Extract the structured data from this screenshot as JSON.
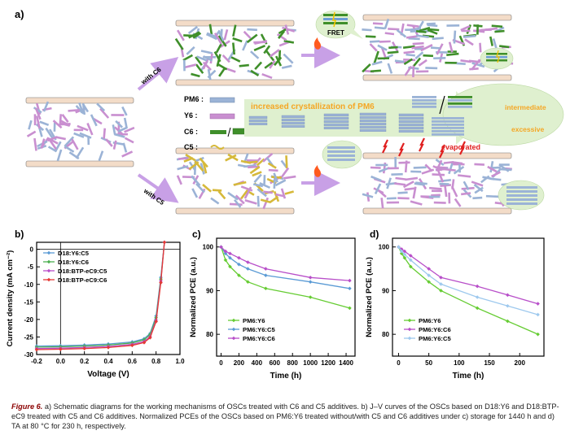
{
  "panel_a": {
    "label": "a)",
    "arrow_upper_label": "with C6",
    "arrow_lower_label": "with C5",
    "legend": [
      "PM6 :",
      "Y6 :",
      "C6 :",
      "C5 :"
    ],
    "fret_label": "FRET",
    "crystallization_text": "increased crystallization of PM6",
    "intermediate_label": "intermediate",
    "excessive_label": "excessive",
    "evaporated_label": "evaporated"
  },
  "chart_data": [
    {
      "panel": "b)",
      "type": "line",
      "xlabel": "Voltage (V)",
      "ylabel": "Current density (mA cm⁻²)",
      "xlim": [
        -0.2,
        1.0
      ],
      "ylim": [
        -30,
        2
      ],
      "xticks": [
        "-0.2",
        "0.0",
        "0.2",
        "0.4",
        "0.6",
        "0.8",
        "1.0"
      ],
      "yticks": [
        "0",
        "-5",
        "-10",
        "-15",
        "-20",
        "-25",
        "-30"
      ],
      "legend_position": "top-left",
      "series": [
        {
          "name": "D18:Y6:C5",
          "color": "#5b9bd5",
          "x": [
            -0.2,
            0.0,
            0.2,
            0.4,
            0.6,
            0.7,
            0.75,
            0.8,
            0.84,
            0.87
          ],
          "y": [
            -27.6,
            -27.5,
            -27.3,
            -27.0,
            -26.4,
            -25.5,
            -24.0,
            -19.0,
            -8.0,
            2.0
          ]
        },
        {
          "name": "D18:Y6:C6",
          "color": "#4caf50",
          "x": [
            -0.2,
            0.0,
            0.2,
            0.4,
            0.6,
            0.7,
            0.75,
            0.8,
            0.84,
            0.87
          ],
          "y": [
            -27.9,
            -27.8,
            -27.6,
            -27.3,
            -26.7,
            -25.8,
            -24.3,
            -19.5,
            -8.5,
            2.0
          ]
        },
        {
          "name": "D18:BTP-eC9:C5",
          "color": "#b84fc9",
          "x": [
            -0.2,
            0.0,
            0.2,
            0.4,
            0.6,
            0.7,
            0.75,
            0.8,
            0.84,
            0.87
          ],
          "y": [
            -28.3,
            -28.2,
            -28.0,
            -27.7,
            -27.1,
            -26.3,
            -24.9,
            -20.2,
            -9.0,
            2.0
          ]
        },
        {
          "name": "D18:BTP-eC9:C6",
          "color": "#e53935",
          "x": [
            -0.2,
            0.0,
            0.2,
            0.4,
            0.6,
            0.7,
            0.75,
            0.8,
            0.84,
            0.87
          ],
          "y": [
            -28.6,
            -28.5,
            -28.3,
            -28.0,
            -27.4,
            -26.6,
            -25.2,
            -20.6,
            -9.5,
            2.0
          ]
        }
      ]
    },
    {
      "panel": "c)",
      "type": "line",
      "xlabel": "Time (h)",
      "ylabel": "Normalized PCE (a.u.)",
      "xlim": [
        -50,
        1500
      ],
      "ylim": [
        75,
        102
      ],
      "xticks": [
        "0",
        "200",
        "400",
        "600",
        "800",
        "1000",
        "1200",
        "1400"
      ],
      "yticks": [
        "80",
        "90",
        "100"
      ],
      "legend_position": "bottom-left",
      "series": [
        {
          "name": "PM6:Y6",
          "color": "#66cc33",
          "x": [
            0,
            50,
            100,
            200,
            300,
            500,
            1000,
            1440
          ],
          "y": [
            100,
            97,
            95.5,
            93.5,
            92,
            90.5,
            88.5,
            86
          ]
        },
        {
          "name": "PM6:Y6:C5",
          "color": "#5b9bd5",
          "x": [
            0,
            50,
            100,
            200,
            300,
            500,
            1000,
            1440
          ],
          "y": [
            100,
            98.5,
            97.5,
            96,
            95,
            93.5,
            92,
            90.5
          ]
        },
        {
          "name": "PM6:Y6:C6",
          "color": "#b84fc9",
          "x": [
            0,
            50,
            100,
            200,
            300,
            500,
            1000,
            1440
          ],
          "y": [
            100,
            99,
            98.5,
            97.5,
            96.5,
            95,
            93,
            92.3
          ]
        }
      ]
    },
    {
      "panel": "d)",
      "type": "line",
      "xlabel": "Time (h)",
      "ylabel": "Normalized PCE (a.u.)",
      "xlim": [
        -10,
        240
      ],
      "ylim": [
        75,
        102
      ],
      "xticks": [
        "0",
        "50",
        "100",
        "150",
        "200"
      ],
      "yticks": [
        "80",
        "90",
        "100"
      ],
      "legend_position": "bottom-left",
      "series": [
        {
          "name": "PM6:Y6",
          "color": "#66cc33",
          "x": [
            0,
            5,
            10,
            20,
            50,
            70,
            130,
            180,
            230
          ],
          "y": [
            100,
            98.5,
            97.5,
            95.5,
            92,
            90,
            86,
            83,
            80
          ]
        },
        {
          "name": "PM6:Y6:C6",
          "color": "#b84fc9",
          "x": [
            0,
            5,
            10,
            20,
            50,
            70,
            130,
            180,
            230
          ],
          "y": [
            100,
            99.5,
            99,
            98,
            95,
            93,
            91,
            89,
            87
          ]
        },
        {
          "name": "PM6:Y6:C5",
          "color": "#9ec9ee",
          "x": [
            0,
            5,
            10,
            20,
            50,
            70,
            130,
            180,
            230
          ],
          "y": [
            100,
            99,
            98.3,
            97,
            93.5,
            91.5,
            88.5,
            86.5,
            84.5
          ]
        }
      ]
    }
  ],
  "caption": {
    "label": "Figure 6.",
    "text": " a) Schematic diagrams for the working mechanisms of OSCs treated with C6 and C5 additives. b) J–V curves of the OSCs based on D18:Y6 and D18:BTP-eC9 treated with C5 and C6 additives. Normalized PCEs of the OSCs based on PM6:Y6 treated without/with C5 and C6 additives under c) storage for 1440 h and d) TA at 80 °C for 230 h, respectively."
  },
  "colors": {
    "pm6": "#9bb3d6",
    "y6": "#c98fd0",
    "c6": "#3f8f2a",
    "c5": "#d6b93a",
    "substrate": "#f3dcc8",
    "bubble": "#dff0cf",
    "arrow": "#c8a0e6",
    "orange_text": "#f5a623",
    "red_text": "#e02020"
  }
}
